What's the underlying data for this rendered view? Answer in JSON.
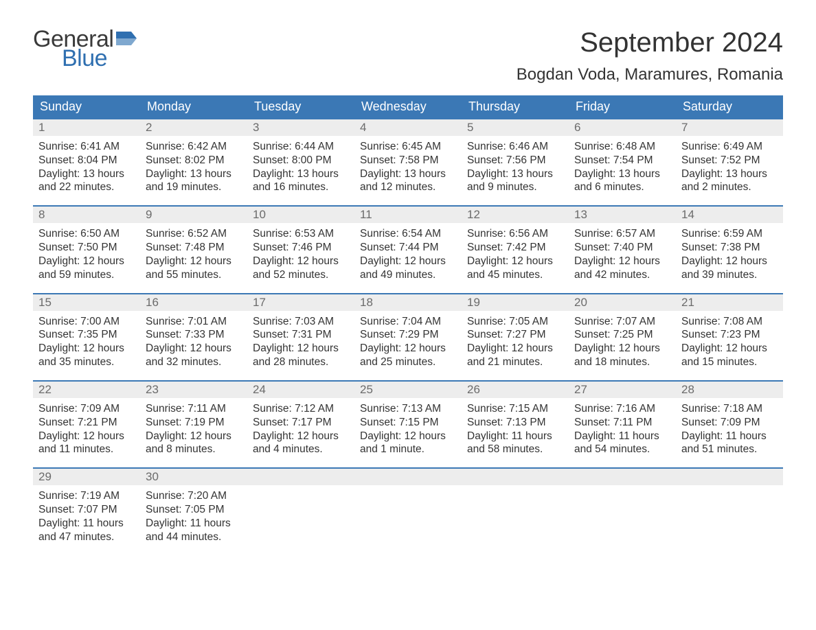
{
  "brand": {
    "part1": "General",
    "part2": "Blue"
  },
  "colors": {
    "headerBlue": "#3b78b5",
    "logoBlue": "#2f6fb0",
    "bgGray": "#ededed",
    "textDark": "#333333",
    "textMuted": "#6b6b6b"
  },
  "title": "September 2024",
  "location": "Bogdan Voda, Maramures, Romania",
  "dayNames": [
    "Sunday",
    "Monday",
    "Tuesday",
    "Wednesday",
    "Thursday",
    "Friday",
    "Saturday"
  ],
  "weeks": [
    [
      {
        "n": "1",
        "sr": "Sunrise: 6:41 AM",
        "ss": "Sunset: 8:04 PM",
        "d1": "Daylight: 13 hours",
        "d2": "and 22 minutes."
      },
      {
        "n": "2",
        "sr": "Sunrise: 6:42 AM",
        "ss": "Sunset: 8:02 PM",
        "d1": "Daylight: 13 hours",
        "d2": "and 19 minutes."
      },
      {
        "n": "3",
        "sr": "Sunrise: 6:44 AM",
        "ss": "Sunset: 8:00 PM",
        "d1": "Daylight: 13 hours",
        "d2": "and 16 minutes."
      },
      {
        "n": "4",
        "sr": "Sunrise: 6:45 AM",
        "ss": "Sunset: 7:58 PM",
        "d1": "Daylight: 13 hours",
        "d2": "and 12 minutes."
      },
      {
        "n": "5",
        "sr": "Sunrise: 6:46 AM",
        "ss": "Sunset: 7:56 PM",
        "d1": "Daylight: 13 hours",
        "d2": "and 9 minutes."
      },
      {
        "n": "6",
        "sr": "Sunrise: 6:48 AM",
        "ss": "Sunset: 7:54 PM",
        "d1": "Daylight: 13 hours",
        "d2": "and 6 minutes."
      },
      {
        "n": "7",
        "sr": "Sunrise: 6:49 AM",
        "ss": "Sunset: 7:52 PM",
        "d1": "Daylight: 13 hours",
        "d2": "and 2 minutes."
      }
    ],
    [
      {
        "n": "8",
        "sr": "Sunrise: 6:50 AM",
        "ss": "Sunset: 7:50 PM",
        "d1": "Daylight: 12 hours",
        "d2": "and 59 minutes."
      },
      {
        "n": "9",
        "sr": "Sunrise: 6:52 AM",
        "ss": "Sunset: 7:48 PM",
        "d1": "Daylight: 12 hours",
        "d2": "and 55 minutes."
      },
      {
        "n": "10",
        "sr": "Sunrise: 6:53 AM",
        "ss": "Sunset: 7:46 PM",
        "d1": "Daylight: 12 hours",
        "d2": "and 52 minutes."
      },
      {
        "n": "11",
        "sr": "Sunrise: 6:54 AM",
        "ss": "Sunset: 7:44 PM",
        "d1": "Daylight: 12 hours",
        "d2": "and 49 minutes."
      },
      {
        "n": "12",
        "sr": "Sunrise: 6:56 AM",
        "ss": "Sunset: 7:42 PM",
        "d1": "Daylight: 12 hours",
        "d2": "and 45 minutes."
      },
      {
        "n": "13",
        "sr": "Sunrise: 6:57 AM",
        "ss": "Sunset: 7:40 PM",
        "d1": "Daylight: 12 hours",
        "d2": "and 42 minutes."
      },
      {
        "n": "14",
        "sr": "Sunrise: 6:59 AM",
        "ss": "Sunset: 7:38 PM",
        "d1": "Daylight: 12 hours",
        "d2": "and 39 minutes."
      }
    ],
    [
      {
        "n": "15",
        "sr": "Sunrise: 7:00 AM",
        "ss": "Sunset: 7:35 PM",
        "d1": "Daylight: 12 hours",
        "d2": "and 35 minutes."
      },
      {
        "n": "16",
        "sr": "Sunrise: 7:01 AM",
        "ss": "Sunset: 7:33 PM",
        "d1": "Daylight: 12 hours",
        "d2": "and 32 minutes."
      },
      {
        "n": "17",
        "sr": "Sunrise: 7:03 AM",
        "ss": "Sunset: 7:31 PM",
        "d1": "Daylight: 12 hours",
        "d2": "and 28 minutes."
      },
      {
        "n": "18",
        "sr": "Sunrise: 7:04 AM",
        "ss": "Sunset: 7:29 PM",
        "d1": "Daylight: 12 hours",
        "d2": "and 25 minutes."
      },
      {
        "n": "19",
        "sr": "Sunrise: 7:05 AM",
        "ss": "Sunset: 7:27 PM",
        "d1": "Daylight: 12 hours",
        "d2": "and 21 minutes."
      },
      {
        "n": "20",
        "sr": "Sunrise: 7:07 AM",
        "ss": "Sunset: 7:25 PM",
        "d1": "Daylight: 12 hours",
        "d2": "and 18 minutes."
      },
      {
        "n": "21",
        "sr": "Sunrise: 7:08 AM",
        "ss": "Sunset: 7:23 PM",
        "d1": "Daylight: 12 hours",
        "d2": "and 15 minutes."
      }
    ],
    [
      {
        "n": "22",
        "sr": "Sunrise: 7:09 AM",
        "ss": "Sunset: 7:21 PM",
        "d1": "Daylight: 12 hours",
        "d2": "and 11 minutes."
      },
      {
        "n": "23",
        "sr": "Sunrise: 7:11 AM",
        "ss": "Sunset: 7:19 PM",
        "d1": "Daylight: 12 hours",
        "d2": "and 8 minutes."
      },
      {
        "n": "24",
        "sr": "Sunrise: 7:12 AM",
        "ss": "Sunset: 7:17 PM",
        "d1": "Daylight: 12 hours",
        "d2": "and 4 minutes."
      },
      {
        "n": "25",
        "sr": "Sunrise: 7:13 AM",
        "ss": "Sunset: 7:15 PM",
        "d1": "Daylight: 12 hours",
        "d2": "and 1 minute."
      },
      {
        "n": "26",
        "sr": "Sunrise: 7:15 AM",
        "ss": "Sunset: 7:13 PM",
        "d1": "Daylight: 11 hours",
        "d2": "and 58 minutes."
      },
      {
        "n": "27",
        "sr": "Sunrise: 7:16 AM",
        "ss": "Sunset: 7:11 PM",
        "d1": "Daylight: 11 hours",
        "d2": "and 54 minutes."
      },
      {
        "n": "28",
        "sr": "Sunrise: 7:18 AM",
        "ss": "Sunset: 7:09 PM",
        "d1": "Daylight: 11 hours",
        "d2": "and 51 minutes."
      }
    ],
    [
      {
        "n": "29",
        "sr": "Sunrise: 7:19 AM",
        "ss": "Sunset: 7:07 PM",
        "d1": "Daylight: 11 hours",
        "d2": "and 47 minutes."
      },
      {
        "n": "30",
        "sr": "Sunrise: 7:20 AM",
        "ss": "Sunset: 7:05 PM",
        "d1": "Daylight: 11 hours",
        "d2": "and 44 minutes."
      },
      {
        "empty": true
      },
      {
        "empty": true
      },
      {
        "empty": true
      },
      {
        "empty": true
      },
      {
        "empty": true
      }
    ]
  ]
}
